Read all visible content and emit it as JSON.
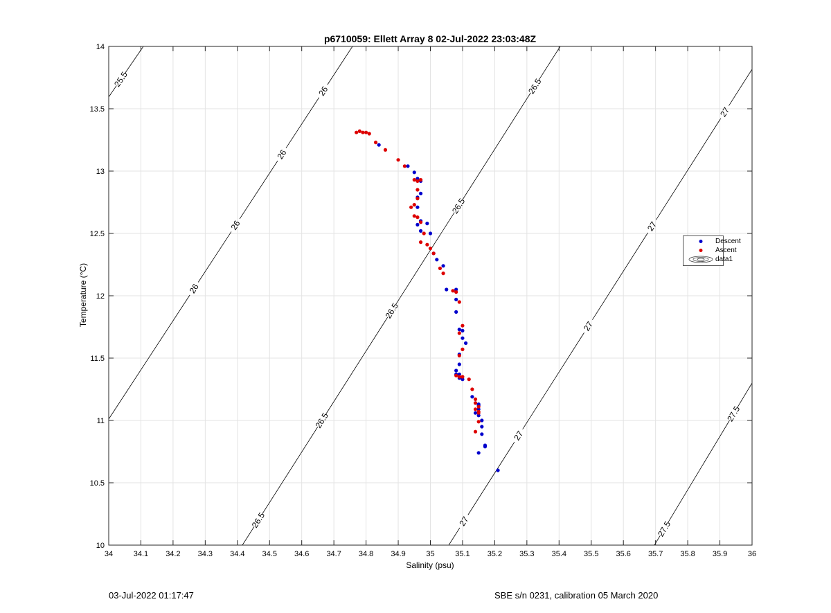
{
  "footer": {
    "left": "03-Jul-2022 01:17:47",
    "right": "SBE s/n 0231, calibration 05 March 2020"
  },
  "chart_data": {
    "type": "scatter",
    "title": "p6710059: Ellett Array 8 02-Jul-2022 23:03:48Z",
    "xlabel": "Salinity (psu)",
    "ylabel": "Temperature (°C)",
    "xlim": [
      34,
      36
    ],
    "ylim": [
      10,
      14
    ],
    "xticks": [
      "34",
      "34.1",
      "34.2",
      "34.3",
      "34.4",
      "34.5",
      "34.6",
      "34.7",
      "34.8",
      "34.9",
      "35",
      "35.1",
      "35.2",
      "35.3",
      "35.4",
      "35.5",
      "35.6",
      "35.7",
      "35.8",
      "35.9",
      "36"
    ],
    "yticks": [
      "10",
      "10.5",
      "11",
      "11.5",
      "12",
      "12.5",
      "13",
      "13.5",
      "14"
    ],
    "grid": true,
    "legend_position": "right",
    "colors": {
      "descent": "#0000cc",
      "ascent": "#dd0000",
      "contour": "#000000",
      "grid": "#e3e3e3"
    },
    "series": [
      {
        "name": "Descent",
        "x": [
          34.84,
          34.93,
          34.95,
          34.96,
          34.97,
          34.97,
          34.96,
          34.96,
          34.97,
          34.96,
          34.97,
          34.99,
          35.0,
          35.01,
          35.02,
          35.04,
          35.05,
          35.08,
          35.08,
          35.08,
          35.09,
          35.1,
          35.1,
          35.11,
          35.09,
          35.09,
          35.08,
          35.08,
          35.09,
          35.09,
          35.1,
          35.13,
          35.14,
          35.15,
          35.15,
          35.15,
          35.14,
          35.15,
          35.16,
          35.16,
          35.16,
          35.17,
          35.17,
          35.15,
          35.21
        ],
        "y": [
          13.21,
          13.04,
          12.99,
          12.94,
          12.92,
          12.82,
          12.79,
          12.71,
          12.6,
          12.57,
          12.52,
          12.58,
          12.5,
          12.34,
          12.29,
          12.24,
          12.05,
          12.05,
          11.97,
          11.87,
          11.73,
          11.72,
          11.66,
          11.62,
          11.53,
          11.45,
          11.4,
          11.37,
          11.37,
          11.34,
          11.33,
          11.19,
          11.14,
          11.13,
          11.12,
          11.09,
          11.06,
          11.04,
          11.0,
          10.95,
          10.89,
          10.8,
          10.79,
          10.74,
          10.6
        ]
      },
      {
        "name": "Ascent",
        "x": [
          34.77,
          34.78,
          34.79,
          34.8,
          34.81,
          34.83,
          34.86,
          34.9,
          34.92,
          34.95,
          34.96,
          34.97,
          34.96,
          34.96,
          34.95,
          34.94,
          34.95,
          34.96,
          34.97,
          34.98,
          34.97,
          34.99,
          35.0,
          35.01,
          35.03,
          35.04,
          35.07,
          35.08,
          35.09,
          35.1,
          35.09,
          35.1,
          35.09,
          35.08,
          35.09,
          35.1,
          35.12,
          35.13,
          35.14,
          35.14,
          35.15,
          35.14,
          35.15,
          35.15,
          35.15,
          35.14
        ],
        "y": [
          13.31,
          13.32,
          13.31,
          13.31,
          13.3,
          13.23,
          13.17,
          13.09,
          13.04,
          12.93,
          12.92,
          12.93,
          12.85,
          12.78,
          12.73,
          12.71,
          12.64,
          12.63,
          12.59,
          12.5,
          12.43,
          12.41,
          12.38,
          12.34,
          12.22,
          12.18,
          12.04,
          12.03,
          11.95,
          11.76,
          11.7,
          11.57,
          11.52,
          11.36,
          11.35,
          11.35,
          11.33,
          11.25,
          11.17,
          11.14,
          11.11,
          11.09,
          11.07,
          11.06,
          10.99,
          10.91
        ]
      }
    ],
    "legend_entries": [
      "Descent",
      "Ascent",
      "data1"
    ],
    "contours": [
      {
        "level": "25.5",
        "labels": [
          "25.5"
        ]
      },
      {
        "level": "26",
        "labels": [
          "26",
          "26",
          "26",
          "26"
        ]
      },
      {
        "level": "26.5",
        "labels": [
          "26.5",
          "26.5",
          "26.5",
          "26.5",
          "26.5"
        ]
      },
      {
        "level": "27",
        "labels": [
          "27",
          "27",
          "27",
          "27",
          "27"
        ]
      },
      {
        "level": "27.5",
        "labels": [
          "27.5",
          "27.5"
        ]
      }
    ]
  }
}
